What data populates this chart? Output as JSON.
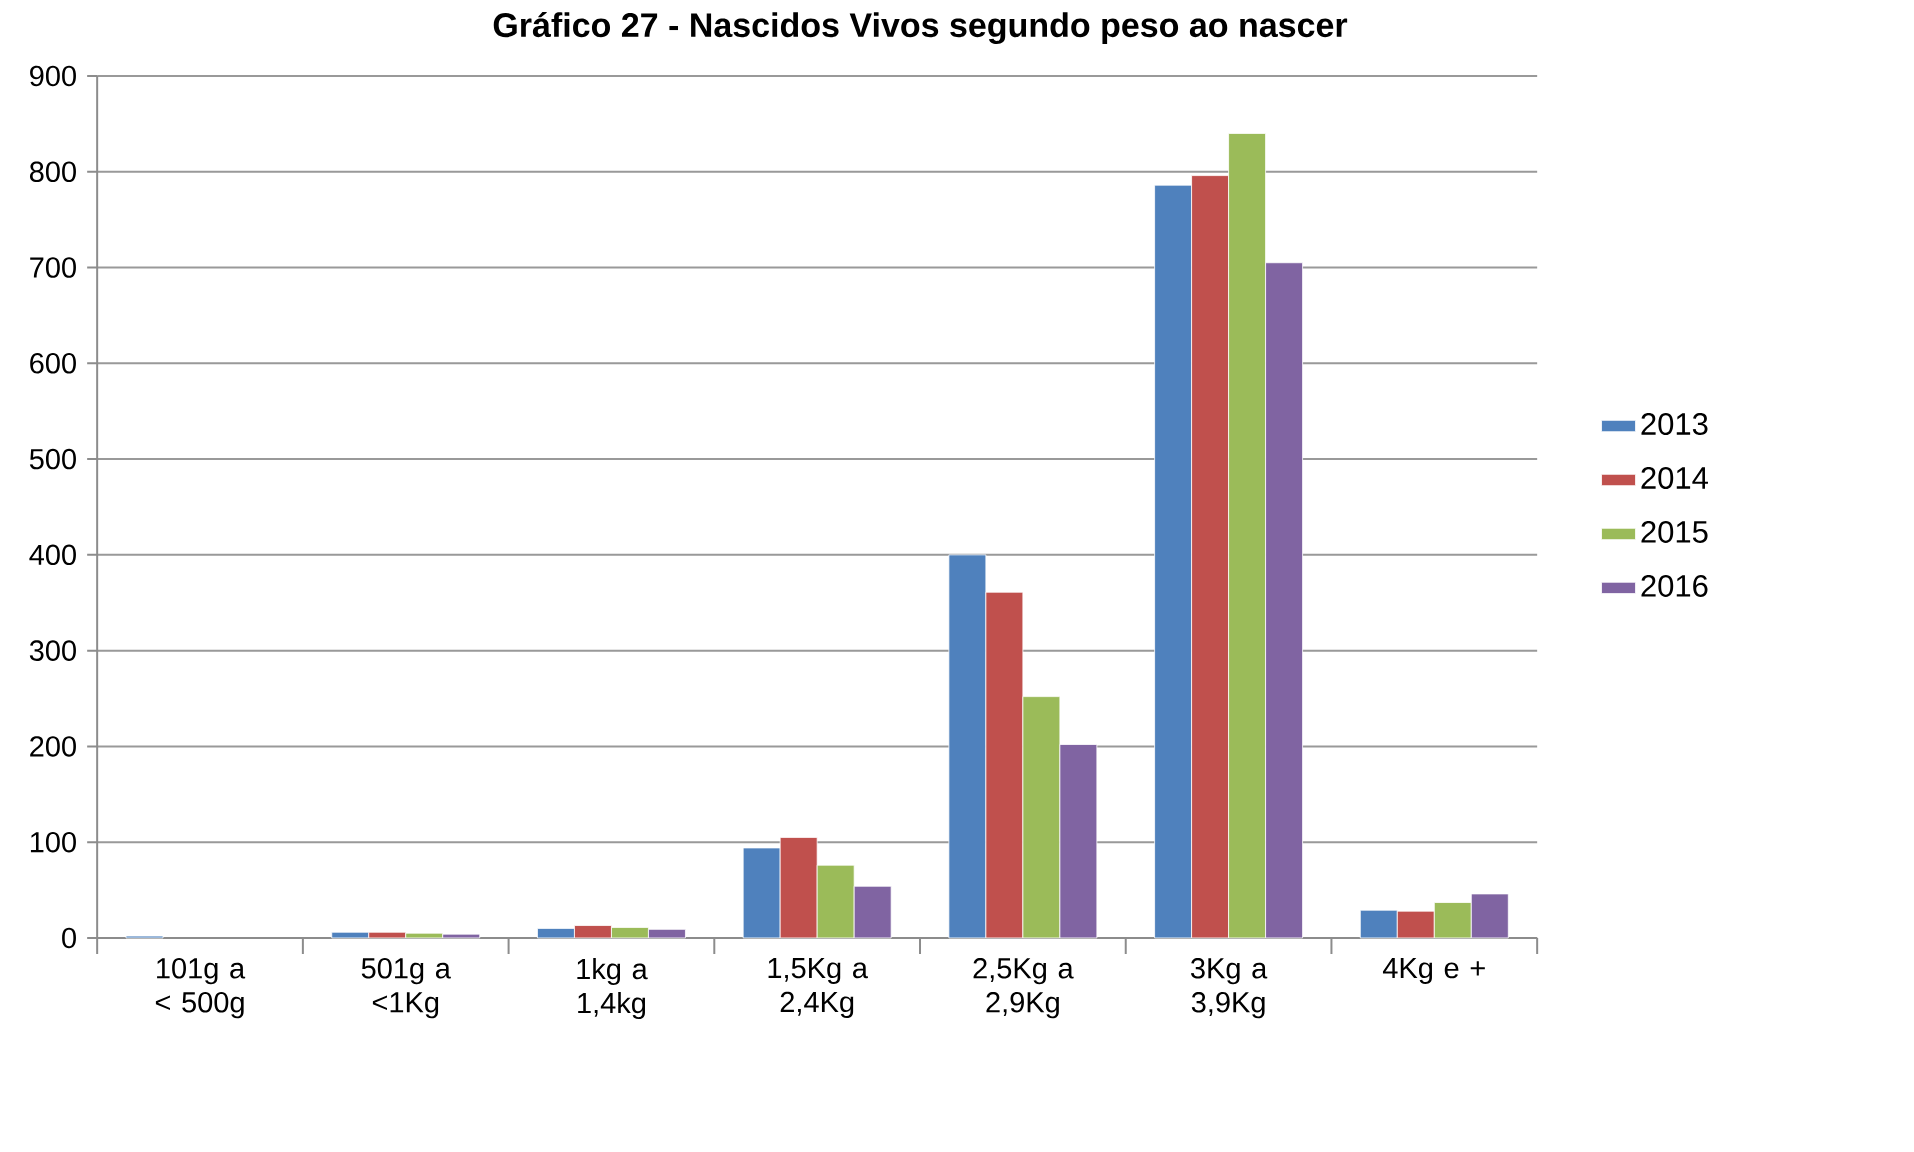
{
  "chart_data": {
    "type": "bar",
    "title": "Gráfico 27 - Nascidos Vivos segundo peso ao nascer",
    "categories": [
      "101g a < 500g",
      "501g a <1Kg",
      "1kg a 1,4kg",
      "1,5Kg a 2,4Kg",
      "2,5Kg a 2,9Kg",
      "3Kg a 3,9Kg",
      "4Kg e +"
    ],
    "series": [
      {
        "name": "2013",
        "color": "#4f81bd",
        "values": [
          2,
          6,
          10,
          94,
          400,
          786,
          29
        ]
      },
      {
        "name": "2014",
        "color": "#c0504d",
        "values": [
          null,
          6,
          13,
          105,
          361,
          796,
          28
        ]
      },
      {
        "name": "2015",
        "color": "#9bbb59",
        "values": [
          null,
          5,
          11,
          76,
          252,
          840,
          37
        ]
      },
      {
        "name": "2016",
        "color": "#8064a2",
        "values": [
          null,
          4,
          9,
          54,
          202,
          705,
          46
        ]
      }
    ],
    "ylim": [
      0,
      900
    ],
    "yticks": [
      0,
      100,
      200,
      300,
      400,
      500,
      600,
      700,
      800,
      900
    ],
    "grid": "y",
    "legend": "right"
  }
}
